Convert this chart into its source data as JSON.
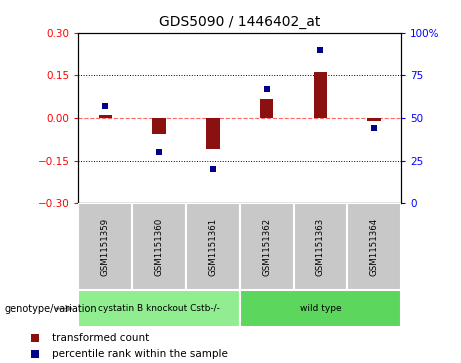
{
  "title": "GDS5090 / 1446402_at",
  "samples": [
    "GSM1151359",
    "GSM1151360",
    "GSM1151361",
    "GSM1151362",
    "GSM1151363",
    "GSM1151364"
  ],
  "transformed_count": [
    0.01,
    -0.055,
    -0.11,
    0.065,
    0.16,
    -0.01
  ],
  "percentile_rank": [
    57,
    30,
    20,
    67,
    90,
    44
  ],
  "groups": [
    {
      "label": "cystatin B knockout Cstb-/-",
      "samples": [
        0,
        1,
        2
      ],
      "color": "#90EE90"
    },
    {
      "label": "wild type",
      "samples": [
        3,
        4,
        5
      ],
      "color": "#5CD65C"
    }
  ],
  "ylim_left": [
    -0.3,
    0.3
  ],
  "ylim_right": [
    0,
    100
  ],
  "yticks_left": [
    -0.3,
    -0.15,
    0,
    0.15,
    0.3
  ],
  "yticks_right": [
    0,
    25,
    50,
    75,
    100
  ],
  "bar_color": "#8B1010",
  "dot_color": "#00008B",
  "zero_line_color": "#FF6666",
  "dot_line_color": "#FF6666",
  "grid_color": "black",
  "bg_color": "white",
  "plot_bg": "white",
  "sample_box_color": "#C8C8C8",
  "genotype_label": "genotype/variation",
  "legend_red": "transformed count",
  "legend_blue": "percentile rank within the sample",
  "bar_width": 0.25
}
